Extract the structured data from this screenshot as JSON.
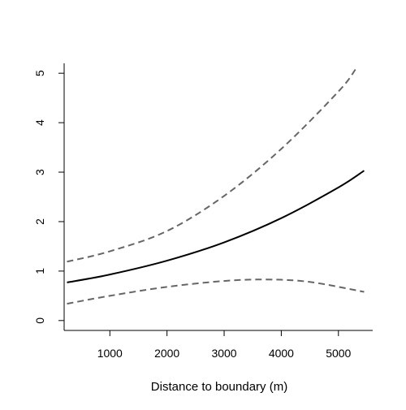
{
  "chart_data": {
    "type": "line",
    "title": "",
    "xlabel": "Distance to boundary (m)",
    "ylabel": "",
    "xlim": [
      200,
      5600
    ],
    "ylim": [
      -0.2,
      5.2
    ],
    "x_ticks": [
      1000,
      2000,
      3000,
      4000,
      5000
    ],
    "y_ticks": [
      0,
      1,
      2,
      3,
      4,
      5
    ],
    "grid": false,
    "legend": "none",
    "series": [
      {
        "style": "solid",
        "color": "#000000",
        "x": [
          250,
          1000,
          2000,
          3000,
          4000,
          5000,
          5450
        ],
        "y": [
          0.77,
          0.93,
          1.21,
          1.58,
          2.07,
          2.69,
          3.03
        ]
      },
      {
        "style": "dashed",
        "color": "#666666",
        "x": [
          250,
          1000,
          2000,
          3000,
          4000,
          5000,
          5300
        ],
        "y": [
          1.19,
          1.4,
          1.81,
          2.52,
          3.47,
          4.63,
          5.08
        ]
      },
      {
        "style": "dashed",
        "color": "#666666",
        "x": [
          250,
          1000,
          2000,
          3000,
          3750,
          4500,
          5450
        ],
        "y": [
          0.34,
          0.5,
          0.68,
          0.8,
          0.83,
          0.78,
          0.58
        ]
      }
    ]
  }
}
